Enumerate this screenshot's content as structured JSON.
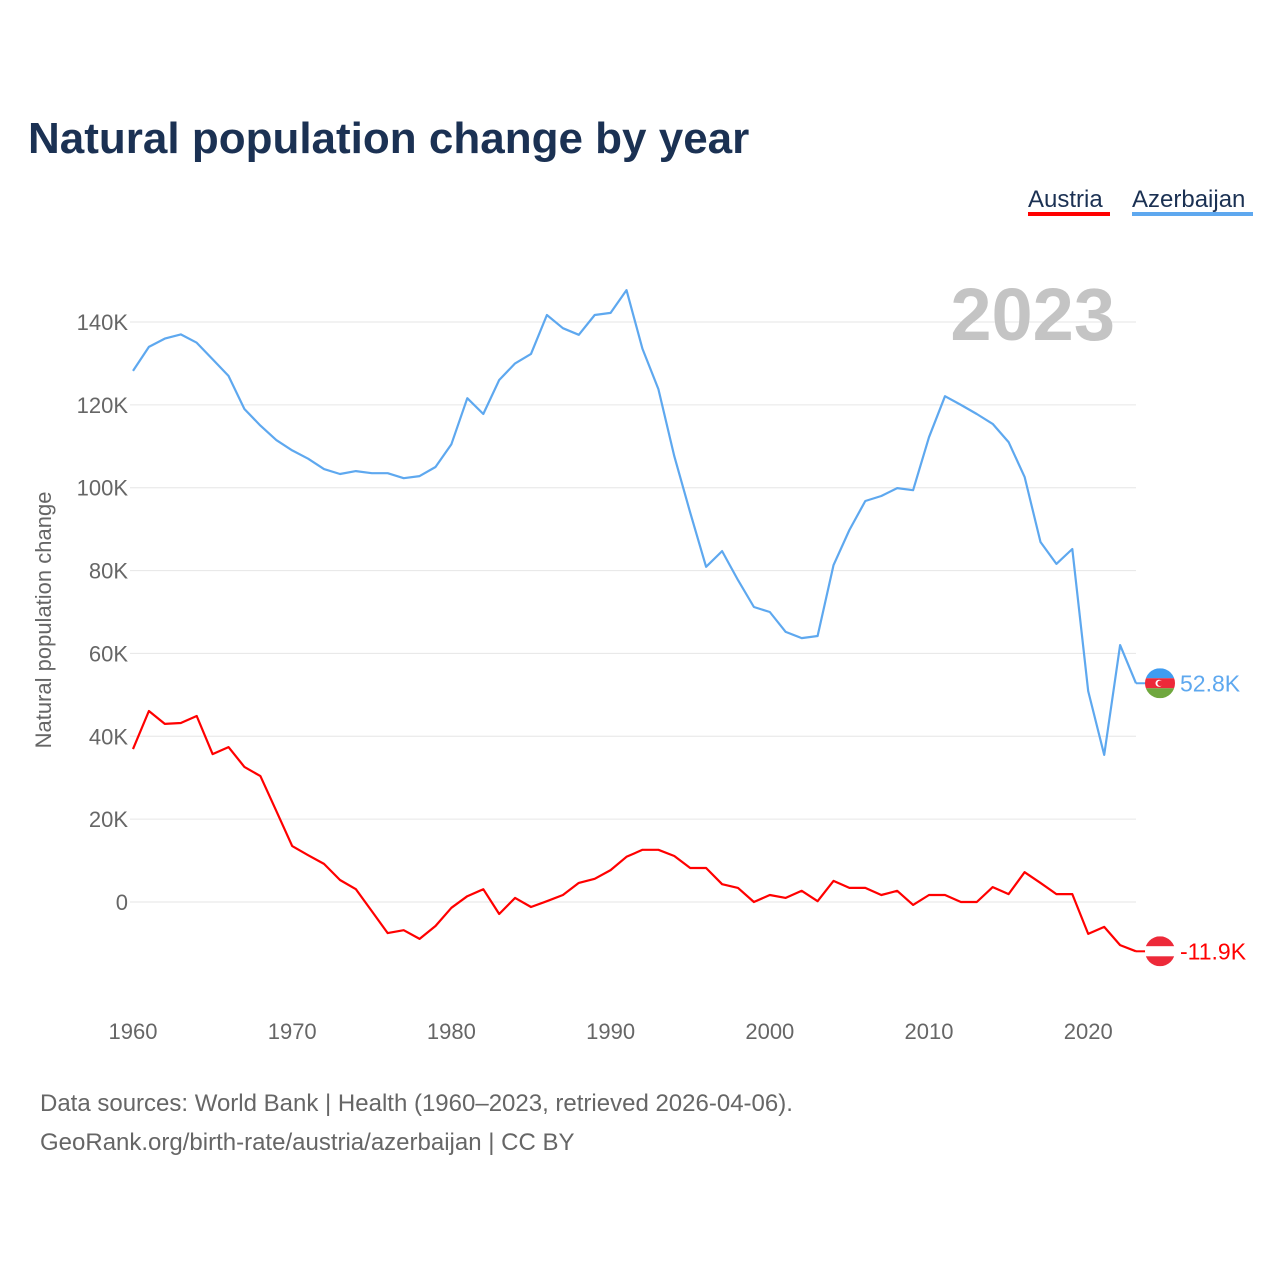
{
  "chart_data": {
    "type": "line",
    "title": "Natural population change by year",
    "ylabel": "Natural population change",
    "xlabel": "",
    "xlim": [
      1960,
      2023
    ],
    "ylim": [
      -20000,
      145000
    ],
    "x_ticks": [
      1960,
      1970,
      1980,
      1990,
      2000,
      2010,
      2020
    ],
    "x_tick_labels": [
      "1960",
      "1970",
      "1980",
      "1990",
      "2000",
      "2010",
      "2020"
    ],
    "y_ticks": [
      0,
      20000,
      40000,
      60000,
      80000,
      100000,
      120000,
      140000
    ],
    "y_tick_labels": [
      "0",
      "20K",
      "40K",
      "60K",
      "80K",
      "100K",
      "120K",
      "140K"
    ],
    "grid": true,
    "legend_position": "top-right",
    "year_watermark": "2023",
    "x": [
      1960,
      1961,
      1962,
      1963,
      1964,
      1965,
      1966,
      1967,
      1968,
      1969,
      1970,
      1971,
      1972,
      1973,
      1974,
      1975,
      1976,
      1977,
      1978,
      1979,
      1980,
      1981,
      1982,
      1983,
      1984,
      1985,
      1986,
      1987,
      1988,
      1989,
      1990,
      1991,
      1992,
      1993,
      1994,
      1995,
      1996,
      1997,
      1998,
      1999,
      2000,
      2001,
      2002,
      2003,
      2004,
      2005,
      2006,
      2007,
      2008,
      2009,
      2010,
      2011,
      2012,
      2013,
      2014,
      2015,
      2016,
      2017,
      2018,
      2019,
      2020,
      2021,
      2022,
      2023
    ],
    "series": [
      {
        "name": "Austria",
        "color": "#ff0000",
        "end_label": "-11.9K",
        "values": [
          36900,
          46100,
          43000,
          43200,
          44900,
          35700,
          37400,
          32600,
          30400,
          22000,
          13500,
          11300,
          9200,
          5300,
          3100,
          -2200,
          -7500,
          -6800,
          -8900,
          -5800,
          -1400,
          1400,
          3100,
          -2900,
          1000,
          -1200,
          200,
          1700,
          4600,
          5600,
          7700,
          10900,
          12600,
          12600,
          11100,
          8200,
          8200,
          4300,
          3400,
          0,
          1700,
          1000,
          2700,
          200,
          5100,
          3400,
          3400,
          1700,
          2700,
          -700,
          1700,
          1700,
          0,
          0,
          3600,
          1900,
          7200,
          4600,
          1900,
          1900,
          -7700,
          -6000,
          -10400,
          -11900
        ]
      },
      {
        "name": "Azerbaijan",
        "color": "#5ea8ef",
        "end_label": "52.8K",
        "values": [
          128200,
          134000,
          136000,
          137000,
          135000,
          131000,
          127000,
          119000,
          115000,
          111500,
          109000,
          107000,
          104500,
          103300,
          104000,
          103500,
          103500,
          102300,
          102800,
          105000,
          110500,
          121600,
          117800,
          126000,
          130000,
          132300,
          141700,
          138500,
          136900,
          141700,
          142200,
          147700,
          133500,
          123800,
          107600,
          94000,
          80900,
          84700,
          77700,
          71200,
          70000,
          65200,
          63700,
          64200,
          81300,
          89800,
          96800,
          98000,
          99900,
          99400,
          112200,
          122100,
          120000,
          117800,
          115400,
          111000,
          102600,
          86900,
          81600,
          85200,
          50900,
          35500,
          62000,
          52800
        ]
      }
    ]
  },
  "footer": {
    "line1": "Data sources: World Bank | Health (1960–2023, retrieved 2026-04-06).",
    "line2": "GeoRank.org/birth-rate/austria/azerbaijan | CC BY"
  }
}
